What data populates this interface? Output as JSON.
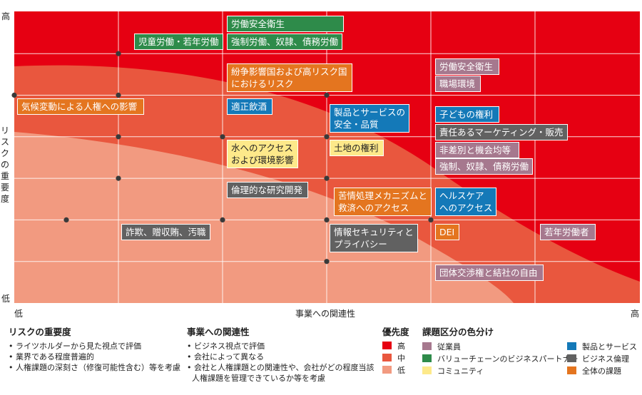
{
  "chart_data": {
    "type": "scatter",
    "title": "",
    "xlabel": "事業への関連性",
    "ylabel": "リスクの重要度",
    "x_low": "低",
    "x_high": "高",
    "y_low": "低",
    "y_high": "高",
    "grid": true,
    "priority_bands": [
      {
        "name": "高",
        "color": "#e60012"
      },
      {
        "name": "中",
        "color": "#e9573e"
      },
      {
        "name": "低",
        "color": "#f29a80"
      }
    ],
    "category_colors": {
      "employee": "#a6788e",
      "value_chain": "#2e8b4a",
      "community": "#fde98a",
      "product": "#1479b8",
      "ethics": "#616161",
      "all": "#e4751f"
    },
    "points": [
      {
        "x": 1,
        "y": 6,
        "items": [
          {
            "label": "労働安全衛生",
            "category": "value_chain"
          },
          {
            "label": "強制労働、奴隷、債務労働",
            "category": "value_chain"
          },
          {
            "label": "児童労働・若年労働",
            "category": "value_chain"
          }
        ]
      },
      {
        "x": 1,
        "y": 5,
        "items": [
          {
            "label": "紛争影響国および高リスク国\nにおけるリスク",
            "category": "all"
          },
          {
            "label": "適正飲酒",
            "category": "product"
          }
        ]
      },
      {
        "x": 0,
        "y": 5,
        "items": [
          {
            "label": "気候変動による人権への影響",
            "category": "all"
          }
        ]
      },
      {
        "x": 3,
        "y": 5,
        "items": [
          {
            "label": "労働安全衛生",
            "category": "employee"
          },
          {
            "label": "職場環境",
            "category": "employee"
          }
        ]
      },
      {
        "x": 2,
        "y": 4,
        "items": [
          {
            "label": "製品とサービスの\n安全・品質",
            "category": "product"
          },
          {
            "label": "土地の権利",
            "category": "community"
          }
        ]
      },
      {
        "x": 1,
        "y": 4,
        "items": [
          {
            "label": "水へのアクセス\nおよび環境影響",
            "category": "community"
          }
        ]
      },
      {
        "x": 3,
        "y": 4,
        "items": [
          {
            "label": "子どもの権利",
            "category": "product"
          },
          {
            "label": "責任あるマーケティング・販売",
            "category": "ethics"
          },
          {
            "label": "非差別と機会均等",
            "category": "employee"
          }
        ]
      },
      {
        "x": 3,
        "y": 3,
        "items": [
          {
            "label": "強制、奴隷、債務労働",
            "category": "employee"
          },
          {
            "label": "ヘルスケア\nへのアクセス",
            "category": "product"
          }
        ]
      },
      {
        "x": 1,
        "y": 3,
        "items": [
          {
            "label": "倫理的な研究開発",
            "category": "ethics"
          }
        ]
      },
      {
        "x": 2,
        "y": 2,
        "items": [
          {
            "label": "苦情処理メカニズムと\n救済へのアクセス",
            "category": "all"
          },
          {
            "label": "情報セキュリティと\nプライバシー",
            "category": "ethics"
          }
        ]
      },
      {
        "x": 0.5,
        "y": 2,
        "items": [
          {
            "label": "詐欺、贈収賄、汚職",
            "category": "ethics"
          }
        ]
      },
      {
        "x": 3,
        "y": 2,
        "items": [
          {
            "label": "DEI",
            "category": "all"
          }
        ]
      },
      {
        "x": 4,
        "y": 2,
        "items": [
          {
            "label": "若年労働者",
            "category": "employee"
          }
        ]
      },
      {
        "x": 3,
        "y": 1,
        "items": [
          {
            "label": "団体交渉権と結社の自由",
            "category": "employee"
          }
        ]
      }
    ]
  },
  "legend": {
    "risk": {
      "title": "リスクの重要度",
      "items": [
        "• ライツホルダーから見た視点で評価",
        "• 業界である程度普遍的",
        "• 人権課題の深刻さ（修復可能性含む）等を考慮"
      ]
    },
    "business": {
      "title": "事業への関連性",
      "items": [
        "• ビジネス視点で評価",
        "• 会社によって異なる",
        "• 会社と人権課題との関連性や、会社がどの程度当該",
        "  人権課題を管理できているか等を考慮"
      ]
    },
    "priority": {
      "title": "優先度",
      "items": [
        {
          "label": "高",
          "color": "#e60012"
        },
        {
          "label": "中",
          "color": "#e9573e"
        },
        {
          "label": "低",
          "color": "#f29a80"
        }
      ]
    },
    "category": {
      "title": "課題区分の色分け",
      "col1": [
        {
          "label": "従業員",
          "color": "#a6788e"
        },
        {
          "label": "バリューチェーンのビジネスパートナー",
          "color": "#2e8b4a"
        },
        {
          "label": "コミュニティ",
          "color": "#fde98a"
        }
      ],
      "col2": [
        {
          "label": "製品とサービス",
          "color": "#1479b8"
        },
        {
          "label": "ビジネス倫理",
          "color": "#616161"
        },
        {
          "label": "全体の課題",
          "color": "#e4751f"
        }
      ]
    }
  }
}
